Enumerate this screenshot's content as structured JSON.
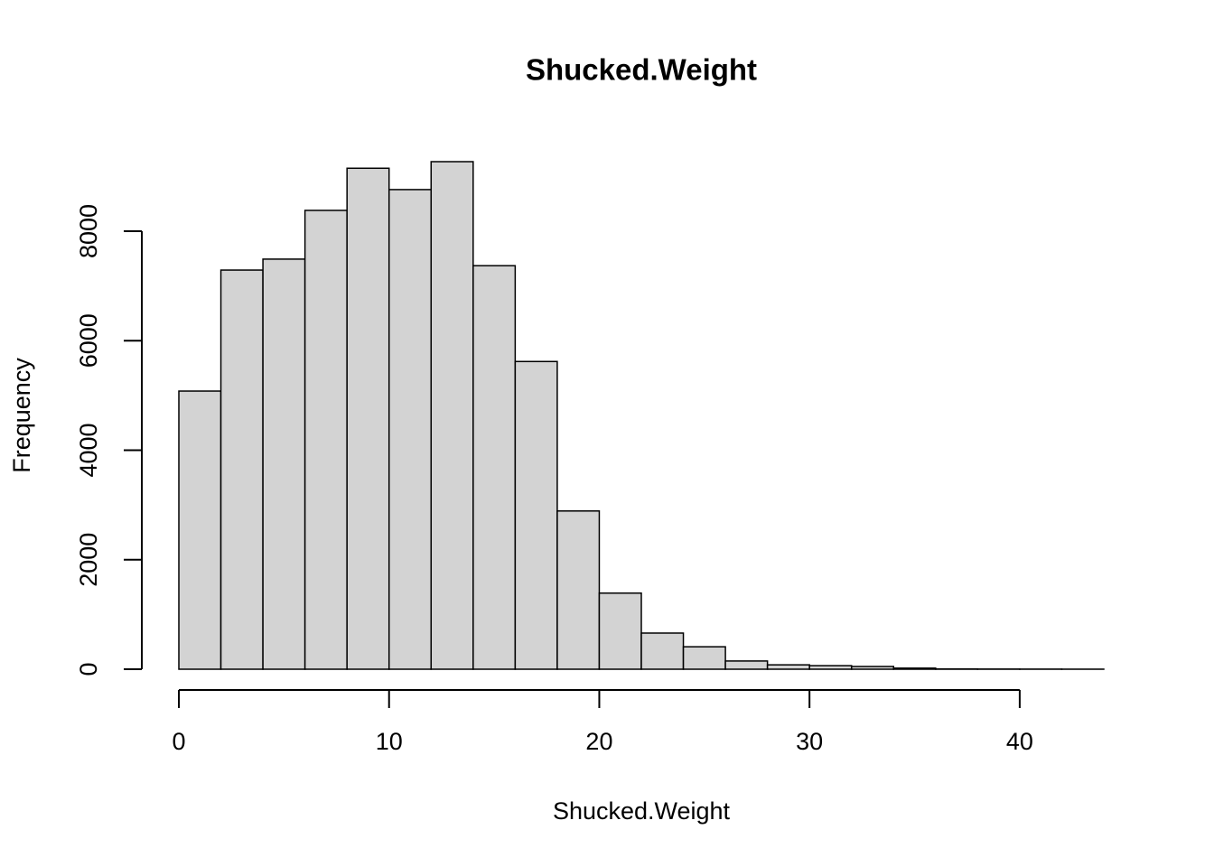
{
  "chart_data": {
    "type": "histogram",
    "title": "Shucked.Weight",
    "x_label": "Shucked.Weight",
    "y_label": "Frequency",
    "bins": [
      0,
      2,
      4,
      6,
      8,
      10,
      12,
      14,
      16,
      18,
      20,
      22,
      24,
      26,
      28,
      30,
      32,
      34,
      36,
      38,
      40,
      42,
      44
    ],
    "counts": [
      5080,
      7290,
      7490,
      8380,
      9150,
      8760,
      9270,
      7370,
      5620,
      2890,
      1390,
      660,
      410,
      150,
      80,
      65,
      50,
      20,
      5,
      3,
      2,
      1
    ],
    "color": "#d3d3d3",
    "xlim": [
      0,
      44
    ],
    "xticks": [
      0,
      10,
      20,
      30,
      40
    ],
    "ylim": [
      0,
      9270
    ],
    "yticks": [
      0,
      2000,
      4000,
      6000,
      8000
    ]
  }
}
